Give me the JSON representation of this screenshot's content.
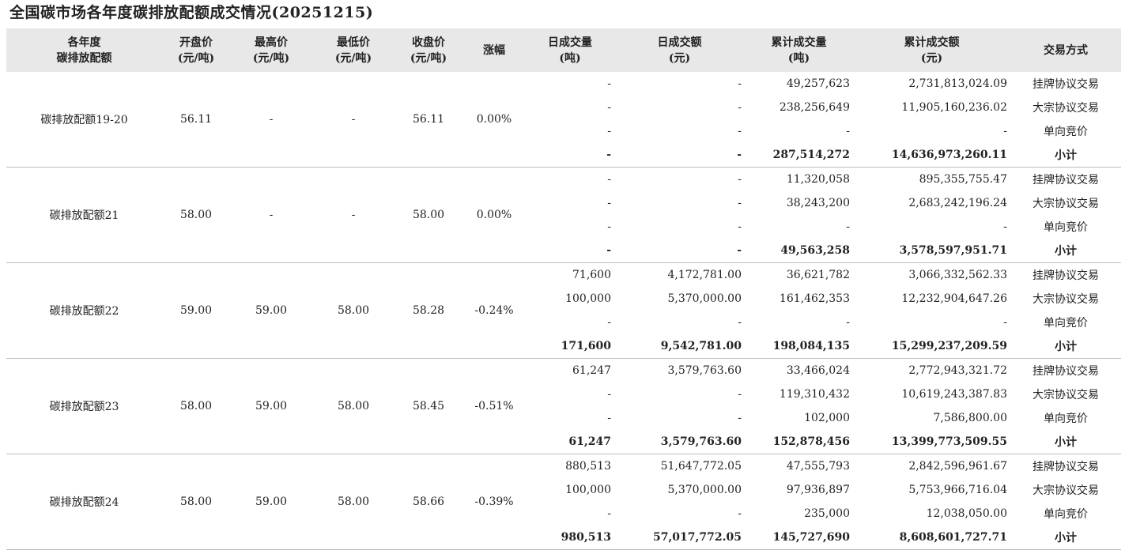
{
  "title": "全国碳市场各年度碳排放配额成交情况(20251215)",
  "headers": [
    {
      "line1": "各年度",
      "line2": "碳排放配额"
    },
    {
      "line1": "开盘价",
      "line2": "(元/吨)"
    },
    {
      "line1": "最高价",
      "line2": "(元/吨)"
    },
    {
      "line1": "最低价",
      "line2": "(元/吨)"
    },
    {
      "line1": "收盘价",
      "line2": "(元/吨)"
    },
    {
      "line1": "涨幅",
      "line2": ""
    },
    {
      "line1": "日成交量",
      "line2": "(吨)"
    },
    {
      "line1": "日成交额",
      "line2": "(元)"
    },
    {
      "line1": "累计成交量",
      "line2": "(吨)"
    },
    {
      "line1": "累计成交额",
      "line2": "(元)"
    },
    {
      "line1": "交易方式",
      "line2": ""
    }
  ],
  "groups": [
    {
      "name": "碳排放配额19-20",
      "open": "56.11",
      "high": "-",
      "low": "-",
      "close": "56.11",
      "change": "0.00%",
      "rows": [
        {
          "day_vol": "-",
          "day_amt": "-",
          "cum_vol": "49,257,623",
          "cum_amt": "2,731,813,024.09",
          "mode": "挂牌协议交易"
        },
        {
          "day_vol": "-",
          "day_amt": "-",
          "cum_vol": "238,256,649",
          "cum_amt": "11,905,160,236.02",
          "mode": "大宗协议交易"
        },
        {
          "day_vol": "-",
          "day_amt": "-",
          "cum_vol": "-",
          "cum_amt": "-",
          "mode": "单向竞价"
        },
        {
          "day_vol": "-",
          "day_amt": "-",
          "cum_vol": "287,514,272",
          "cum_amt": "14,636,973,260.11",
          "mode": "小计"
        }
      ]
    },
    {
      "name": "碳排放配额21",
      "open": "58.00",
      "high": "-",
      "low": "-",
      "close": "58.00",
      "change": "0.00%",
      "rows": [
        {
          "day_vol": "-",
          "day_amt": "-",
          "cum_vol": "11,320,058",
          "cum_amt": "895,355,755.47",
          "mode": "挂牌协议交易"
        },
        {
          "day_vol": "-",
          "day_amt": "-",
          "cum_vol": "38,243,200",
          "cum_amt": "2,683,242,196.24",
          "mode": "大宗协议交易"
        },
        {
          "day_vol": "-",
          "day_amt": "-",
          "cum_vol": "-",
          "cum_amt": "-",
          "mode": "单向竞价"
        },
        {
          "day_vol": "-",
          "day_amt": "-",
          "cum_vol": "49,563,258",
          "cum_amt": "3,578,597,951.71",
          "mode": "小计"
        }
      ]
    },
    {
      "name": "碳排放配额22",
      "open": "59.00",
      "high": "59.00",
      "low": "58.00",
      "close": "58.28",
      "change": "-0.24%",
      "rows": [
        {
          "day_vol": "71,600",
          "day_amt": "4,172,781.00",
          "cum_vol": "36,621,782",
          "cum_amt": "3,066,332,562.33",
          "mode": "挂牌协议交易"
        },
        {
          "day_vol": "100,000",
          "day_amt": "5,370,000.00",
          "cum_vol": "161,462,353",
          "cum_amt": "12,232,904,647.26",
          "mode": "大宗协议交易"
        },
        {
          "day_vol": "-",
          "day_amt": "-",
          "cum_vol": "-",
          "cum_amt": "-",
          "mode": "单向竞价"
        },
        {
          "day_vol": "171,600",
          "day_amt": "9,542,781.00",
          "cum_vol": "198,084,135",
          "cum_amt": "15,299,237,209.59",
          "mode": "小计"
        }
      ]
    },
    {
      "name": "碳排放配额23",
      "open": "58.00",
      "high": "59.00",
      "low": "58.00",
      "close": "58.45",
      "change": "-0.51%",
      "rows": [
        {
          "day_vol": "61,247",
          "day_amt": "3,579,763.60",
          "cum_vol": "33,466,024",
          "cum_amt": "2,772,943,321.72",
          "mode": "挂牌协议交易"
        },
        {
          "day_vol": "-",
          "day_amt": "-",
          "cum_vol": "119,310,432",
          "cum_amt": "10,619,243,387.83",
          "mode": "大宗协议交易"
        },
        {
          "day_vol": "-",
          "day_amt": "-",
          "cum_vol": "102,000",
          "cum_amt": "7,586,800.00",
          "mode": "单向竞价"
        },
        {
          "day_vol": "61,247",
          "day_amt": "3,579,763.60",
          "cum_vol": "152,878,456",
          "cum_amt": "13,399,773,509.55",
          "mode": "小计"
        }
      ]
    },
    {
      "name": "碳排放配额24",
      "open": "58.00",
      "high": "59.00",
      "low": "58.00",
      "close": "58.66",
      "change": "-0.39%",
      "rows": [
        {
          "day_vol": "880,513",
          "day_amt": "51,647,772.05",
          "cum_vol": "47,555,793",
          "cum_amt": "2,842,596,961.67",
          "mode": "挂牌协议交易"
        },
        {
          "day_vol": "100,000",
          "day_amt": "5,370,000.00",
          "cum_vol": "97,936,897",
          "cum_amt": "5,753,966,716.04",
          "mode": "大宗协议交易"
        },
        {
          "day_vol": "-",
          "day_amt": "-",
          "cum_vol": "235,000",
          "cum_amt": "12,038,050.00",
          "mode": "单向竞价"
        },
        {
          "day_vol": "980,513",
          "day_amt": "57,017,772.05",
          "cum_vol": "145,727,690",
          "cum_amt": "8,608,601,727.71",
          "mode": "小计"
        }
      ]
    }
  ]
}
